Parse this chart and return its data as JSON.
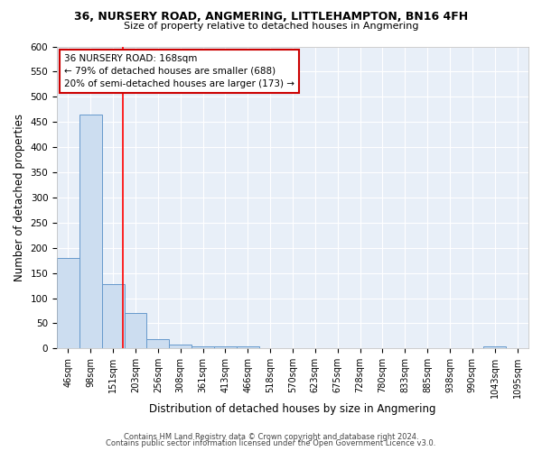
{
  "title": "36, NURSERY ROAD, ANGMERING, LITTLEHAMPTON, BN16 4FH",
  "subtitle": "Size of property relative to detached houses in Angmering",
  "xlabel": "Distribution of detached houses by size in Angmering",
  "ylabel": "Number of detached properties",
  "categories": [
    "46sqm",
    "98sqm",
    "151sqm",
    "203sqm",
    "256sqm",
    "308sqm",
    "361sqm",
    "413sqm",
    "466sqm",
    "518sqm",
    "570sqm",
    "623sqm",
    "675sqm",
    "728sqm",
    "780sqm",
    "833sqm",
    "885sqm",
    "938sqm",
    "990sqm",
    "1043sqm",
    "1095sqm"
  ],
  "values": [
    180,
    465,
    127,
    70,
    19,
    8,
    5,
    5,
    5,
    0,
    0,
    0,
    0,
    0,
    0,
    0,
    0,
    0,
    0,
    5,
    0
  ],
  "bar_color": "#ccddf0",
  "bar_edge_color": "#6699cc",
  "background_color": "#e8eff8",
  "grid_color": "#ffffff",
  "vline_color": "#ff0000",
  "vline_x": 2.45,
  "annotation_text": "36 NURSERY ROAD: 168sqm\n← 79% of detached houses are smaller (688)\n20% of semi-detached houses are larger (173) →",
  "annotation_box_color": "#ffffff",
  "annotation_box_edge_color": "#cc0000",
  "ylim": [
    0,
    600
  ],
  "yticks": [
    0,
    50,
    100,
    150,
    200,
    250,
    300,
    350,
    400,
    450,
    500,
    550,
    600
  ],
  "footer_line1": "Contains HM Land Registry data © Crown copyright and database right 2024.",
  "footer_line2": "Contains public sector information licensed under the Open Government Licence v3.0."
}
